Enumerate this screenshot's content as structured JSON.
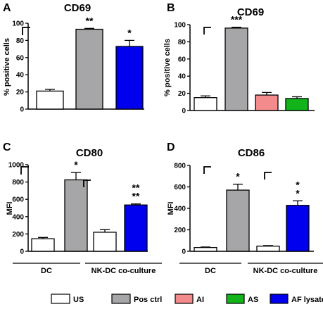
{
  "colors": {
    "US": "#ffffff",
    "Pos ctrl": "#a6a6a8",
    "AI": "#f38b8d",
    "AS": "#13b41b",
    "AF lysate": "#0000ee"
  },
  "legend": [
    {
      "key": "US",
      "label": "US"
    },
    {
      "key": "Pos ctrl",
      "label": "Pos ctrl"
    },
    {
      "key": "AI",
      "label": "AI"
    },
    {
      "key": "AS",
      "label": "AS"
    },
    {
      "key": "AF lysate",
      "label": "AF lysate"
    }
  ],
  "chart_data": [
    {
      "panel": "A",
      "type": "bar",
      "title": "CD69",
      "ylabel": "% positive cells",
      "ylim": [
        0,
        100
      ],
      "yticks": [
        "0",
        "20",
        "40",
        "60",
        "80",
        "100"
      ],
      "categories": [
        "US",
        "Pos ctrl",
        "AF lysate"
      ],
      "values": [
        21,
        93,
        73
      ],
      "errors": [
        2,
        1,
        7
      ],
      "significance": [
        "",
        "**",
        "*"
      ],
      "groups": []
    },
    {
      "panel": "B",
      "type": "bar",
      "title": "CD69",
      "ylabel": "% positive cells",
      "ylim": [
        0,
        100
      ],
      "yticks": [
        "0",
        "20",
        "40",
        "60",
        "80",
        "100"
      ],
      "categories": [
        "US",
        "Pos ctrl",
        "AI",
        "AS"
      ],
      "values": [
        15,
        96,
        18,
        14
      ],
      "errors": [
        2,
        1,
        3,
        2
      ],
      "significance": [
        "",
        "***",
        "",
        ""
      ],
      "groups": []
    },
    {
      "panel": "C",
      "type": "bar",
      "title": "CD80",
      "ylabel": "MFI",
      "ylim": [
        0,
        1000
      ],
      "yticks": [
        "0",
        "200",
        "400",
        "600",
        "800",
        "1000"
      ],
      "categories": [
        "US",
        "Pos ctrl",
        "US",
        "AF lysate"
      ],
      "values": [
        145,
        825,
        220,
        535
      ],
      "errors": [
        15,
        85,
        30,
        12
      ],
      "significance": [
        "",
        "*",
        "",
        "**\n**"
      ],
      "groups": [
        {
          "label": "DC"
        },
        {
          "label": "NK-DC co-culture"
        }
      ]
    },
    {
      "panel": "D",
      "type": "bar",
      "title": "CD86",
      "ylabel": "MFI",
      "ylim": [
        0,
        800
      ],
      "yticks": [
        "0",
        "200",
        "400",
        "600",
        "800"
      ],
      "categories": [
        "US",
        "Pos ctrl",
        "US",
        "AF lysate"
      ],
      "values": [
        35,
        570,
        48,
        428
      ],
      "errors": [
        5,
        55,
        5,
        42
      ],
      "significance": [
        "",
        "*",
        "",
        "*\n*"
      ],
      "groups": [
        {
          "label": "DC"
        },
        {
          "label": "NK-DC co-culture"
        }
      ]
    }
  ]
}
